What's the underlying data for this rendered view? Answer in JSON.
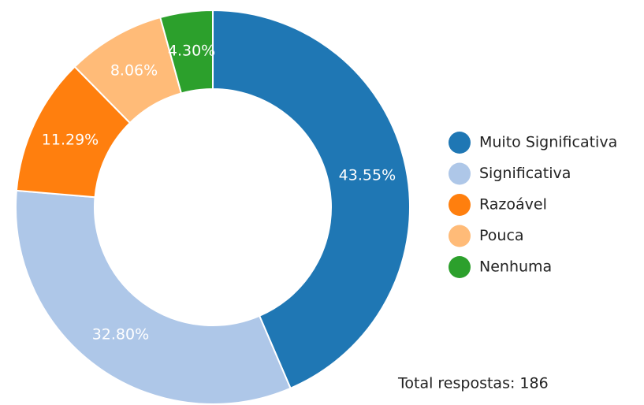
{
  "chart_data": {
    "type": "donut",
    "categories": [
      "Muito Significativa",
      "Significativa",
      "Razoável",
      "Pouca",
      "Nenhuma"
    ],
    "values": [
      43.55,
      32.8,
      11.29,
      8.06,
      4.3
    ],
    "value_labels": [
      "43.55%",
      "32.80%",
      "11.29%",
      "8.06%",
      "4.30%"
    ],
    "colors": [
      "#1f77b4",
      "#aec7e8",
      "#ff7f0e",
      "#ffbb78",
      "#2ca02c"
    ],
    "annotation": "Total respostas: 186"
  }
}
